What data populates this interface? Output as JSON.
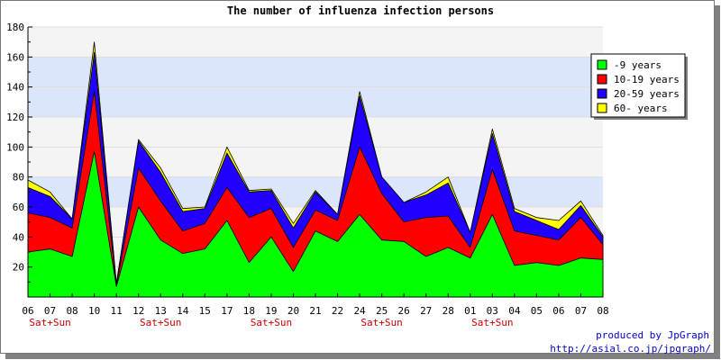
{
  "chart_data": {
    "type": "area",
    "stacked": true,
    "title": "The number of influenza infection persons",
    "categories": [
      "06",
      "07",
      "08",
      "10",
      "11",
      "12",
      "13",
      "14",
      "15",
      "17",
      "18",
      "19",
      "20",
      "21",
      "22",
      "24",
      "25",
      "26",
      "27",
      "28",
      "01",
      "03",
      "04",
      "05",
      "06",
      "07",
      "08"
    ],
    "weekend_labels": [
      {
        "category_index": 1,
        "text": "Sat+Sun"
      },
      {
        "category_index": 6,
        "text": "Sat+Sun"
      },
      {
        "category_index": 11,
        "text": "Sat+Sun"
      },
      {
        "category_index": 16,
        "text": "Sat+Sun"
      },
      {
        "category_index": 21,
        "text": "Sat+Sun"
      }
    ],
    "ylim": [
      0,
      180
    ],
    "yticks": [
      20,
      40,
      60,
      80,
      100,
      120,
      140,
      160,
      180
    ],
    "background_bands": {
      "light": "#f4f4f4",
      "blue": "#dbe5fb"
    },
    "series": [
      {
        "name": "-9 years",
        "color": "#00ff00",
        "values": [
          30,
          32,
          27,
          97,
          7,
          60,
          38,
          29,
          32,
          51,
          23,
          40,
          17,
          44,
          37,
          55,
          38,
          37,
          27,
          33,
          26,
          55,
          21,
          23,
          21,
          26,
          25
        ]
      },
      {
        "name": "10-19 years",
        "color": "#ff0000",
        "values": [
          26,
          21,
          19,
          40,
          1,
          26,
          26,
          15,
          17,
          22,
          30,
          19,
          16,
          14,
          14,
          45,
          31,
          13,
          26,
          21,
          7,
          30,
          23,
          18,
          17,
          27,
          10
        ]
      },
      {
        "name": "20-59 years",
        "color": "#2200ff",
        "values": [
          17,
          14,
          6,
          26,
          1,
          18,
          19,
          13,
          10,
          23,
          17,
          12,
          13,
          12,
          4,
          34,
          11,
          13,
          15,
          22,
          10,
          24,
          13,
          10,
          7,
          8,
          5
        ]
      },
      {
        "name": "60- years",
        "color": "#ffff00",
        "values": [
          5,
          3,
          0,
          7,
          0,
          1,
          3,
          2,
          1,
          4,
          1,
          1,
          3,
          1,
          0,
          3,
          0,
          0,
          2,
          4,
          0,
          3,
          2,
          2,
          6,
          3,
          1
        ]
      }
    ],
    "legend": {
      "position": "right"
    }
  },
  "footer": {
    "line1": "produced by JpGraph",
    "line2": "http://asial.co.jp/jpgraph/"
  }
}
